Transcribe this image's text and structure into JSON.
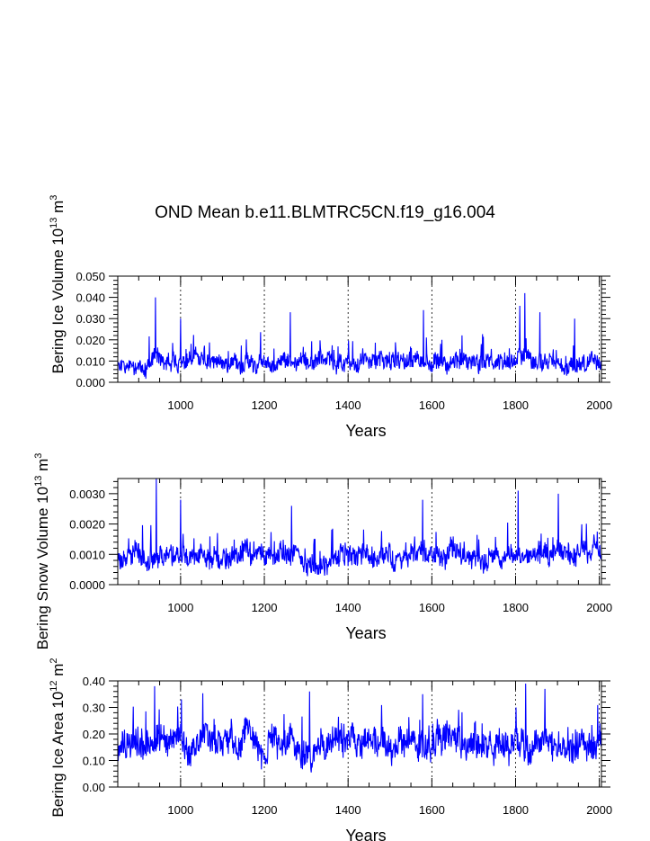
{
  "title": "OND Mean b.e11.BLMTRC5CN.f19_g16.004",
  "chart_data": [
    {
      "type": "line",
      "title": "OND Mean b.e11.BLMTRC5CN.f19_g16.004",
      "xlabel": "Years",
      "ylabel": {
        "text": "Bering Ice Volume 10",
        "sup": "13",
        "unit": " m",
        "unit_sup": "3"
      },
      "xlim": [
        850,
        2005
      ],
      "ylim": [
        0,
        0.05
      ],
      "xticks": [
        "1000",
        "1200",
        "1400",
        "1600",
        "1800",
        "2000"
      ],
      "yticks": [
        "0.000",
        "0.010",
        "0.020",
        "0.030",
        "0.040",
        "0.050"
      ],
      "series": [
        {
          "name": "Bering Ice Volume",
          "color": "#0000ff",
          "seed": 11,
          "mean": 0.0095,
          "spread": 0.0045,
          "noise": 0.0035,
          "floor": 0.0003,
          "spikes": [
            [
              940,
              0.04
            ],
            [
              1000,
              0.03
            ],
            [
              1262,
              0.033
            ],
            [
              1580,
              0.034
            ],
            [
              1810,
              0.036
            ],
            [
              1822,
              0.042
            ],
            [
              1858,
              0.033
            ],
            [
              1941,
              0.03
            ]
          ]
        }
      ],
      "grid": "dashed vertical at x ticks"
    },
    {
      "type": "line",
      "title": "",
      "xlabel": "Years",
      "ylabel": {
        "text": "Bering Snow Volume 10",
        "sup": "13",
        "unit": " m",
        "unit_sup": "3"
      },
      "xlim": [
        850,
        2005
      ],
      "ylim": [
        0,
        0.0035
      ],
      "xticks": [
        "1000",
        "1200",
        "1400",
        "1600",
        "1800",
        "2000"
      ],
      "yticks": [
        "0.0000",
        "0.0010",
        "0.0020",
        "0.0030"
      ],
      "series": [
        {
          "name": "Bering Snow Volume",
          "color": "#0000ff",
          "seed": 23,
          "mean": 0.00095,
          "spread": 0.0004,
          "noise": 0.0003,
          "floor": 5e-05,
          "spikes": [
            [
              942,
              0.0035
            ],
            [
              1000,
              0.0028
            ],
            [
              1265,
              0.0026
            ],
            [
              1578,
              0.0028
            ],
            [
              1806,
              0.0031
            ],
            [
              1902,
              0.003
            ]
          ]
        }
      ],
      "grid": "dashed vertical at x ticks"
    },
    {
      "type": "line",
      "title": "",
      "xlabel": "Years",
      "ylabel": {
        "text": "Bering Ice Area 10",
        "sup": "12",
        "unit": " m",
        "unit_sup": "2"
      },
      "xlim": [
        850,
        2005
      ],
      "ylim": [
        0,
        0.4
      ],
      "xticks": [
        "1000",
        "1200",
        "1400",
        "1600",
        "1800",
        "2000"
      ],
      "yticks": [
        "0.00",
        "0.10",
        "0.20",
        "0.30",
        "0.40"
      ],
      "series": [
        {
          "name": "Bering Ice Area",
          "color": "#0000ff",
          "seed": 37,
          "mean": 0.165,
          "spread": 0.06,
          "noise": 0.05,
          "floor": 0.02,
          "spikes": [
            [
              938,
              0.38
            ],
            [
              1002,
              0.33
            ],
            [
              1308,
              0.36
            ],
            [
              1578,
              0.35
            ],
            [
              1824,
              0.39
            ],
            [
              1870,
              0.37
            ]
          ]
        }
      ],
      "grid": "dashed vertical at x ticks"
    }
  ]
}
